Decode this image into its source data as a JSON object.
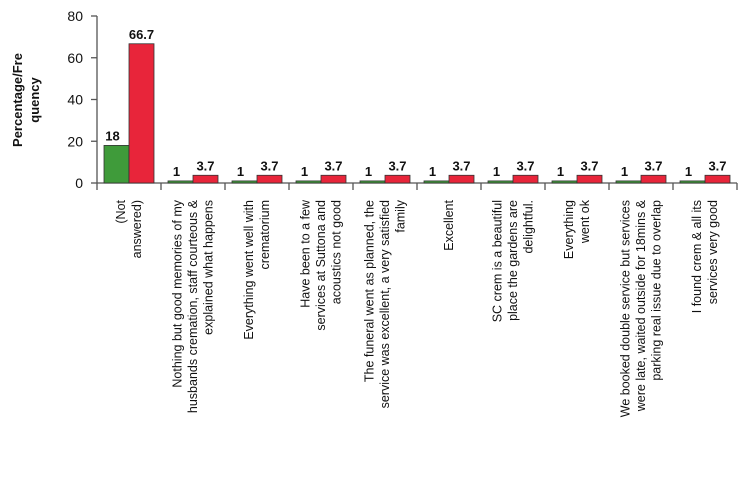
{
  "chart_data": {
    "type": "bar",
    "title": "",
    "xlabel": "",
    "ylabel": "Percentage/Frequency",
    "ylabel_lines": [
      "Percentage/Fre",
      "quency"
    ],
    "ylim": [
      0,
      80
    ],
    "yticks": [
      "0",
      "20",
      "40",
      "60",
      "80"
    ],
    "grid": false,
    "legend": "none",
    "categories": [
      [
        "(Not",
        "answered)"
      ],
      [
        "Nothing but good memories of my",
        "husbands cremation, staff courteous &",
        "explained what happens"
      ],
      [
        "Everything went well with",
        "crematorium"
      ],
      [
        "Have been to a few",
        "services at Suttona and",
        "acoustics not good"
      ],
      [
        "The funeral went as planned, the",
        "service was excellent, a very satisfied",
        "family"
      ],
      [
        "Excellent"
      ],
      [
        "SC crem is a beautiful",
        "place the gardens are",
        "delightful."
      ],
      [
        "Everything",
        "went ok"
      ],
      [
        "We booked double service but services",
        "were late, waited outside for 18mins &",
        "parking real issue due to overlap"
      ],
      [
        "I found crem & all its",
        "services very good"
      ]
    ],
    "series": [
      {
        "values": [
          18,
          1,
          1,
          1,
          1,
          1,
          1,
          1,
          1,
          1
        ],
        "labels": [
          "18",
          "1",
          "1",
          "1",
          "1",
          "1",
          "1",
          "1",
          "1",
          "1"
        ],
        "color": "#3f9b3a"
      },
      {
        "values": [
          66.7,
          3.7,
          3.7,
          3.7,
          3.7,
          3.7,
          3.7,
          3.7,
          3.7,
          3.7
        ],
        "labels": [
          "66.7",
          "3.7",
          "3.7",
          "3.7",
          "3.7",
          "3.7",
          "3.7",
          "3.7",
          "3.7",
          "3.7"
        ],
        "color": "#e8253a"
      }
    ]
  }
}
